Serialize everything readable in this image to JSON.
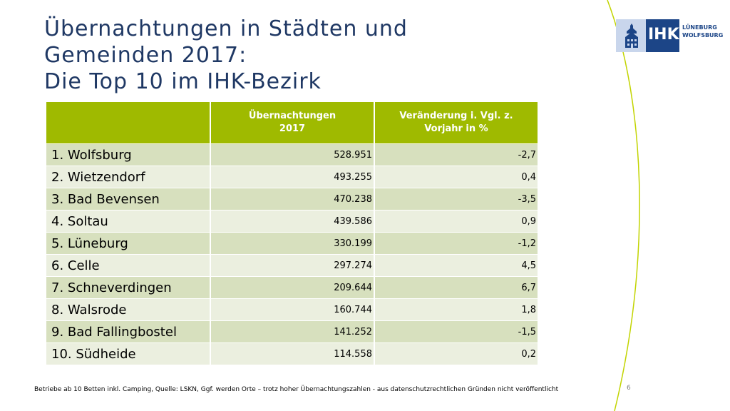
{
  "slide": {
    "title_lines": [
      "Übernachtungen in Städten und",
      "Gemeinden 2017:",
      "Die Top 10 im IHK-Bezirk"
    ],
    "logo": {
      "ihk": "IHK",
      "line1": "LÜNEBURG",
      "line2": "WOLFSBURG"
    },
    "table": {
      "headers": [
        {
          "lines": [
            ""
          ]
        },
        {
          "lines": [
            "Übernachtungen",
            "2017"
          ]
        },
        {
          "lines": [
            "Veränderung i. Vgl. z.",
            "Vorjahr in %"
          ]
        }
      ],
      "rows": [
        {
          "name": "1. Wolfsburg",
          "overnights": "528.951",
          "change": "-2,7"
        },
        {
          "name": "2. Wietzendorf",
          "overnights": "493.255",
          "change": "0,4"
        },
        {
          "name": "3. Bad Bevensen",
          "overnights": "470.238",
          "change": "-3,5"
        },
        {
          "name": "4. Soltau",
          "overnights": "439.586",
          "change": "0,9"
        },
        {
          "name": "5. Lüneburg",
          "overnights": "330.199",
          "change": "-1,2"
        },
        {
          "name": "6. Celle",
          "overnights": "297.274",
          "change": "4,5"
        },
        {
          "name": "7. Schneverdingen",
          "overnights": "209.644",
          "change": "6,7"
        },
        {
          "name": "8. Walsrode",
          "overnights": "160.744",
          "change": "1,8"
        },
        {
          "name": "9. Bad Fallingbostel",
          "overnights": "141.252",
          "change": "-1,5"
        },
        {
          "name": "10. Südheide",
          "overnights": "114.558",
          "change": "0,2"
        }
      ]
    },
    "footnote": "Betriebe ab 10 Betten inkl. Camping, Quelle: LSKN, Ggf. werden Orte – trotz hoher Übernachtungszahlen - aus datenschutzrechtlichen Gründen nicht veröffentlicht",
    "page_number": "6"
  },
  "colors": {
    "title": "#1f3864",
    "header_green": "#9fba00",
    "row_dark": "#d7e0be",
    "row_light": "#ebefdf",
    "logo_blue": "#1c4587",
    "logo_light": "#c9d6ec",
    "curve_green": "#c2d400"
  }
}
